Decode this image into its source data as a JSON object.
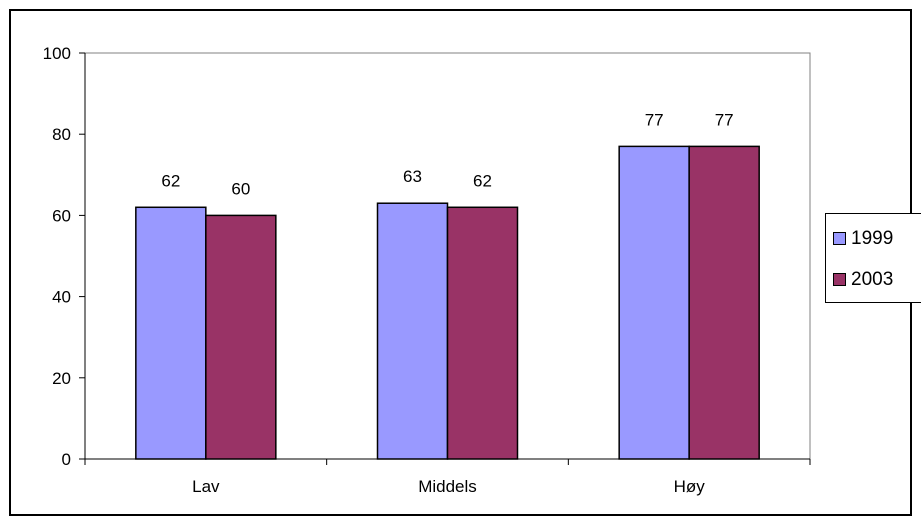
{
  "chart_data": {
    "type": "bar",
    "title": "",
    "xlabel": "",
    "ylabel": "",
    "categories": [
      "Lav",
      "Middels",
      "Høy"
    ],
    "series": [
      {
        "name": "1999",
        "values": [
          62,
          63,
          77
        ],
        "color": "#9999ff"
      },
      {
        "name": "2003",
        "values": [
          60,
          62,
          77
        ],
        "color": "#993366"
      }
    ],
    "ylim": [
      0,
      100
    ],
    "yticks": [
      0,
      20,
      40,
      60,
      80,
      100
    ],
    "ytick_labels": [
      "0",
      "20",
      "40",
      "60",
      "80",
      "100"
    ],
    "grid": false,
    "legend": "right",
    "data_labels": true,
    "plot_background": "#ffffff"
  }
}
